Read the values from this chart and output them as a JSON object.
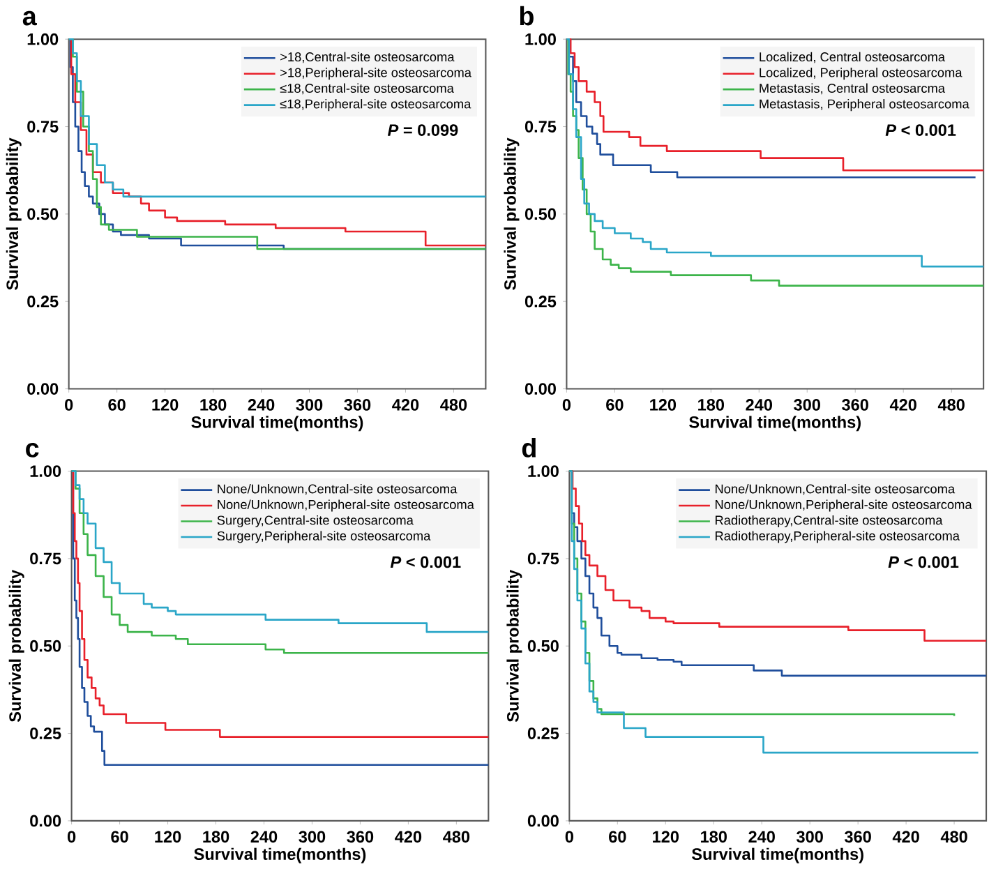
{
  "chart_data": [
    {
      "type": "step",
      "title": "a",
      "xlabel": "Survival time(months)",
      "ylabel": "Survival probability",
      "annotations": [
        "*P* = 0.099"
      ],
      "xlim": [
        0,
        520
      ],
      "ylim": [
        0,
        1
      ],
      "xticks": [
        0,
        60,
        120,
        180,
        240,
        300,
        360,
        420,
        480
      ],
      "yticks": [
        {
          "value": 0,
          "label": "0.00"
        },
        {
          "value": 0.25,
          "label": "0.25"
        },
        {
          "value": 0.5,
          "label": "0.50"
        },
        {
          "value": 0.75,
          "label": "0.75"
        },
        {
          "value": 1,
          "label": "1.00"
        }
      ],
      "grid": false,
      "legend": "top right",
      "series": [
        {
          "name": ">18,Central-site osteosarcoma",
          "color": "#1f4e9c",
          "x": [
            0,
            2,
            5,
            8,
            12,
            16,
            20,
            25,
            30,
            38,
            45,
            55,
            65,
            100,
            140,
            268,
            520
          ],
          "values": [
            1,
            0.92,
            0.82,
            0.75,
            0.68,
            0.62,
            0.58,
            0.55,
            0.53,
            0.5,
            0.47,
            0.45,
            0.44,
            0.43,
            0.41,
            0.4,
            0.4
          ]
        },
        {
          "name": ">18,Peripheral-site osteosarcoma",
          "color": "#e8202a",
          "x": [
            0,
            3,
            8,
            15,
            22,
            30,
            40,
            55,
            75,
            90,
            100,
            120,
            135,
            195,
            258,
            345,
            445,
            520
          ],
          "values": [
            1,
            0.9,
            0.82,
            0.74,
            0.67,
            0.62,
            0.59,
            0.56,
            0.55,
            0.53,
            0.51,
            0.49,
            0.48,
            0.47,
            0.46,
            0.45,
            0.41,
            0.41
          ]
        },
        {
          "name": "≤18,Central-site osteosarcoma",
          "color": "#3cb44a",
          "x": [
            0,
            5,
            10,
            18,
            25,
            30,
            35,
            40,
            50,
            85,
            235,
            520
          ],
          "values": [
            1,
            0.95,
            0.85,
            0.75,
            0.68,
            0.6,
            0.52,
            0.47,
            0.455,
            0.435,
            0.4,
            0.4
          ]
        },
        {
          "name": "≤18,Peripheral-site osteosarcoma",
          "color": "#2aa6c8",
          "x": [
            0,
            5,
            10,
            15,
            25,
            35,
            45,
            55,
            68,
            520
          ],
          "values": [
            1,
            0.96,
            0.88,
            0.78,
            0.7,
            0.64,
            0.59,
            0.57,
            0.55,
            0.55
          ]
        }
      ]
    },
    {
      "type": "step",
      "title": "b",
      "xlabel": "Survival time(months)",
      "ylabel": "Survival probability",
      "annotations": [
        "*P* < 0.001"
      ],
      "xlim": [
        0,
        520
      ],
      "ylim": [
        0,
        1
      ],
      "xticks": [
        0,
        60,
        120,
        180,
        240,
        300,
        360,
        420,
        480
      ],
      "yticks": [
        {
          "value": 0,
          "label": "0.00"
        },
        {
          "value": 0.25,
          "label": "0.25"
        },
        {
          "value": 0.5,
          "label": "0.50"
        },
        {
          "value": 0.75,
          "label": "0.75"
        },
        {
          "value": 1,
          "label": "1.00"
        }
      ],
      "grid": false,
      "legend": "top right",
      "series": [
        {
          "name": "Localized, Central osteosarcoma",
          "color": "#1f4e9c",
          "x": [
            0,
            3,
            8,
            12,
            18,
            25,
            32,
            38,
            42,
            58,
            105,
            138,
            510
          ],
          "values": [
            1,
            0.95,
            0.88,
            0.82,
            0.78,
            0.75,
            0.73,
            0.7,
            0.67,
            0.64,
            0.62,
            0.605,
            0.605
          ]
        },
        {
          "name": "Localized, Peripheral osteosarcoma",
          "color": "#e8202a",
          "x": [
            0,
            5,
            10,
            15,
            25,
            35,
            42,
            46,
            78,
            92,
            125,
            242,
            345,
            520
          ],
          "values": [
            1,
            0.96,
            0.92,
            0.88,
            0.85,
            0.82,
            0.78,
            0.735,
            0.72,
            0.695,
            0.68,
            0.66,
            0.625,
            0.625
          ]
        },
        {
          "name": "Metastasis, Central osteosarcma",
          "color": "#3cb44a",
          "x": [
            0,
            2,
            5,
            8,
            12,
            15,
            20,
            25,
            30,
            35,
            45,
            55,
            65,
            80,
            130,
            230,
            265,
            520
          ],
          "values": [
            1,
            0.9,
            0.85,
            0.78,
            0.74,
            0.66,
            0.57,
            0.5,
            0.45,
            0.4,
            0.37,
            0.355,
            0.345,
            0.335,
            0.325,
            0.31,
            0.295,
            0.295
          ]
        },
        {
          "name": "Metastasis, Peripheral osteosarcoma",
          "color": "#2aa6c8",
          "x": [
            0,
            3,
            8,
            12,
            18,
            22,
            28,
            35,
            45,
            60,
            80,
            95,
            105,
            125,
            180,
            443,
            520
          ],
          "values": [
            1,
            0.9,
            0.8,
            0.72,
            0.6,
            0.53,
            0.5,
            0.48,
            0.46,
            0.445,
            0.43,
            0.42,
            0.4,
            0.39,
            0.38,
            0.35,
            0.35
          ]
        }
      ]
    },
    {
      "type": "step",
      "title": "c",
      "xlabel": "Survival time(months)",
      "ylabel": "Survival probability",
      "annotations": [
        "*P* < 0.001"
      ],
      "xlim": [
        0,
        520
      ],
      "ylim": [
        0,
        1
      ],
      "xticks": [
        0,
        60,
        120,
        180,
        240,
        300,
        360,
        420,
        480
      ],
      "yticks": [
        {
          "value": 0,
          "label": "0.00"
        },
        {
          "value": 0.25,
          "label": "0.25"
        },
        {
          "value": 0.5,
          "label": "0.50"
        },
        {
          "value": 0.75,
          "label": "0.75"
        },
        {
          "value": 1,
          "label": "1.00"
        }
      ],
      "grid": false,
      "legend": "top right",
      "series": [
        {
          "name": "None/Unknown,Central-site osteosarcoma",
          "color": "#1f4e9c",
          "x": [
            0,
            2,
            4,
            6,
            8,
            10,
            13,
            16,
            20,
            24,
            28,
            38,
            41,
            520
          ],
          "values": [
            1,
            0.75,
            0.63,
            0.58,
            0.52,
            0.44,
            0.38,
            0.34,
            0.3,
            0.27,
            0.255,
            0.2,
            0.16,
            0.16
          ]
        },
        {
          "name": "None/Unknown,Peripheral-site osteosarcoma",
          "color": "#e8202a",
          "x": [
            0,
            2,
            4,
            6,
            8,
            10,
            13,
            16,
            20,
            25,
            30,
            35,
            40,
            68,
            117,
            185,
            520
          ],
          "values": [
            1,
            0.88,
            0.8,
            0.75,
            0.68,
            0.6,
            0.52,
            0.46,
            0.41,
            0.38,
            0.35,
            0.33,
            0.305,
            0.28,
            0.26,
            0.24,
            0.24
          ]
        },
        {
          "name": "Surgery,Central-site osteosarcoma",
          "color": "#3cb44a",
          "x": [
            0,
            5,
            10,
            15,
            20,
            30,
            40,
            50,
            60,
            70,
            100,
            130,
            145,
            242,
            265,
            520
          ],
          "values": [
            1,
            0.95,
            0.88,
            0.82,
            0.76,
            0.7,
            0.64,
            0.59,
            0.56,
            0.54,
            0.53,
            0.52,
            0.505,
            0.49,
            0.48,
            0.48
          ]
        },
        {
          "name": "Surgery,Peripheral-site osteosarcoma",
          "color": "#2aa6c8",
          "x": [
            0,
            5,
            10,
            15,
            20,
            30,
            40,
            50,
            60,
            90,
            100,
            120,
            130,
            242,
            333,
            443,
            520
          ],
          "values": [
            1,
            0.96,
            0.92,
            0.88,
            0.85,
            0.78,
            0.74,
            0.68,
            0.65,
            0.62,
            0.61,
            0.6,
            0.59,
            0.575,
            0.565,
            0.54,
            0.54
          ]
        }
      ]
    },
    {
      "type": "step",
      "title": "d",
      "xlabel": "Survival time(months)",
      "ylabel": "Survival probability",
      "annotations": [
        "*P* < 0.001"
      ],
      "xlim": [
        0,
        520
      ],
      "ylim": [
        0,
        1
      ],
      "xticks": [
        0,
        60,
        120,
        180,
        240,
        300,
        360,
        420,
        480
      ],
      "yticks": [
        {
          "value": 0,
          "label": "0.00"
        },
        {
          "value": 0.25,
          "label": "0.25"
        },
        {
          "value": 0.5,
          "label": "0.50"
        },
        {
          "value": 0.75,
          "label": "0.75"
        },
        {
          "value": 1,
          "label": "1.00"
        }
      ],
      "grid": false,
      "legend": "top right",
      "series": [
        {
          "name": "None/Unknown,Central-site osteosarcoma",
          "color": "#1f4e9c",
          "x": [
            0,
            3,
            6,
            10,
            15,
            20,
            25,
            30,
            35,
            40,
            50,
            60,
            65,
            90,
            110,
            130,
            140,
            230,
            265,
            520
          ],
          "values": [
            1,
            0.88,
            0.84,
            0.8,
            0.75,
            0.7,
            0.65,
            0.61,
            0.58,
            0.53,
            0.5,
            0.48,
            0.475,
            0.465,
            0.46,
            0.455,
            0.445,
            0.43,
            0.415,
            0.415
          ]
        },
        {
          "name": "None/Unknown,Peripheral-site osteosarcoma",
          "color": "#e8202a",
          "x": [
            0,
            4,
            8,
            12,
            16,
            20,
            25,
            35,
            45,
            55,
            75,
            90,
            100,
            120,
            130,
            187,
            348,
            443,
            520
          ],
          "values": [
            1,
            0.95,
            0.9,
            0.85,
            0.8,
            0.76,
            0.73,
            0.7,
            0.66,
            0.63,
            0.61,
            0.6,
            0.58,
            0.57,
            0.565,
            0.555,
            0.545,
            0.515,
            0.515
          ]
        },
        {
          "name": "Radiotherapy,Central-site osteosarcoma",
          "color": "#3cb44a",
          "x": [
            0,
            3,
            6,
            10,
            15,
            20,
            25,
            30,
            35,
            40,
            480
          ],
          "values": [
            1,
            0.85,
            0.75,
            0.65,
            0.57,
            0.48,
            0.4,
            0.35,
            0.32,
            0.305,
            0.3
          ]
        },
        {
          "name": "Radiotherapy,Peripheral-site osteosarcoma",
          "color": "#2aa6c8",
          "x": [
            0,
            3,
            6,
            10,
            15,
            20,
            25,
            30,
            35,
            68,
            95,
            242,
            510
          ],
          "values": [
            1,
            0.8,
            0.72,
            0.63,
            0.55,
            0.45,
            0.37,
            0.34,
            0.31,
            0.265,
            0.24,
            0.195,
            0.195
          ]
        }
      ]
    }
  ]
}
